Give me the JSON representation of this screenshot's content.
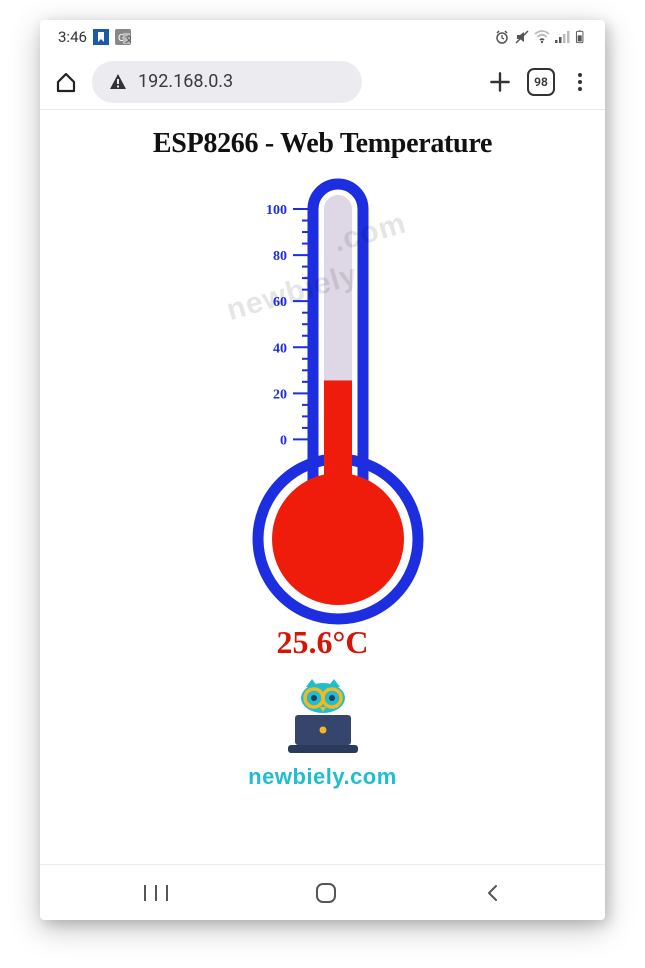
{
  "status": {
    "time": "3:46",
    "app_icon1_color": "#1a5aa8",
    "app_icon2_label": "G",
    "icons": [
      "alarm",
      "mute",
      "wifi",
      "signal",
      "battery"
    ]
  },
  "browser": {
    "url": "192.168.0.3",
    "security": "warning",
    "tab_count": "98"
  },
  "page": {
    "title": "ESP8266 - Web Temperature",
    "watermark_text": "newbiely.com",
    "temperature_value": "25.6",
    "temperature_unit": "°C",
    "temperature_display": "25.6°C",
    "brand": "newbiely.com",
    "brand_color": "#1fbecf"
  },
  "thermometer": {
    "type": "thermometer",
    "min": -15,
    "max": 100,
    "current": 25.6,
    "tick_labels": [
      0,
      20,
      40,
      60,
      80,
      100
    ],
    "tick_label_fontsize": 14,
    "minor_tick_step": 5,
    "stroke_color": "#1c2ee0",
    "stroke_width": 11,
    "tube_empty_color": "#ded7e6",
    "mercury_color": "#ef1c0c",
    "tick_color": "#1c2ee0",
    "label_color": "#1c2ee0",
    "reading_color": "#d41507",
    "tube_width": 50,
    "tube_height": 300,
    "bulb_radius_outer": 80,
    "bulb_radius_inner": 66
  }
}
